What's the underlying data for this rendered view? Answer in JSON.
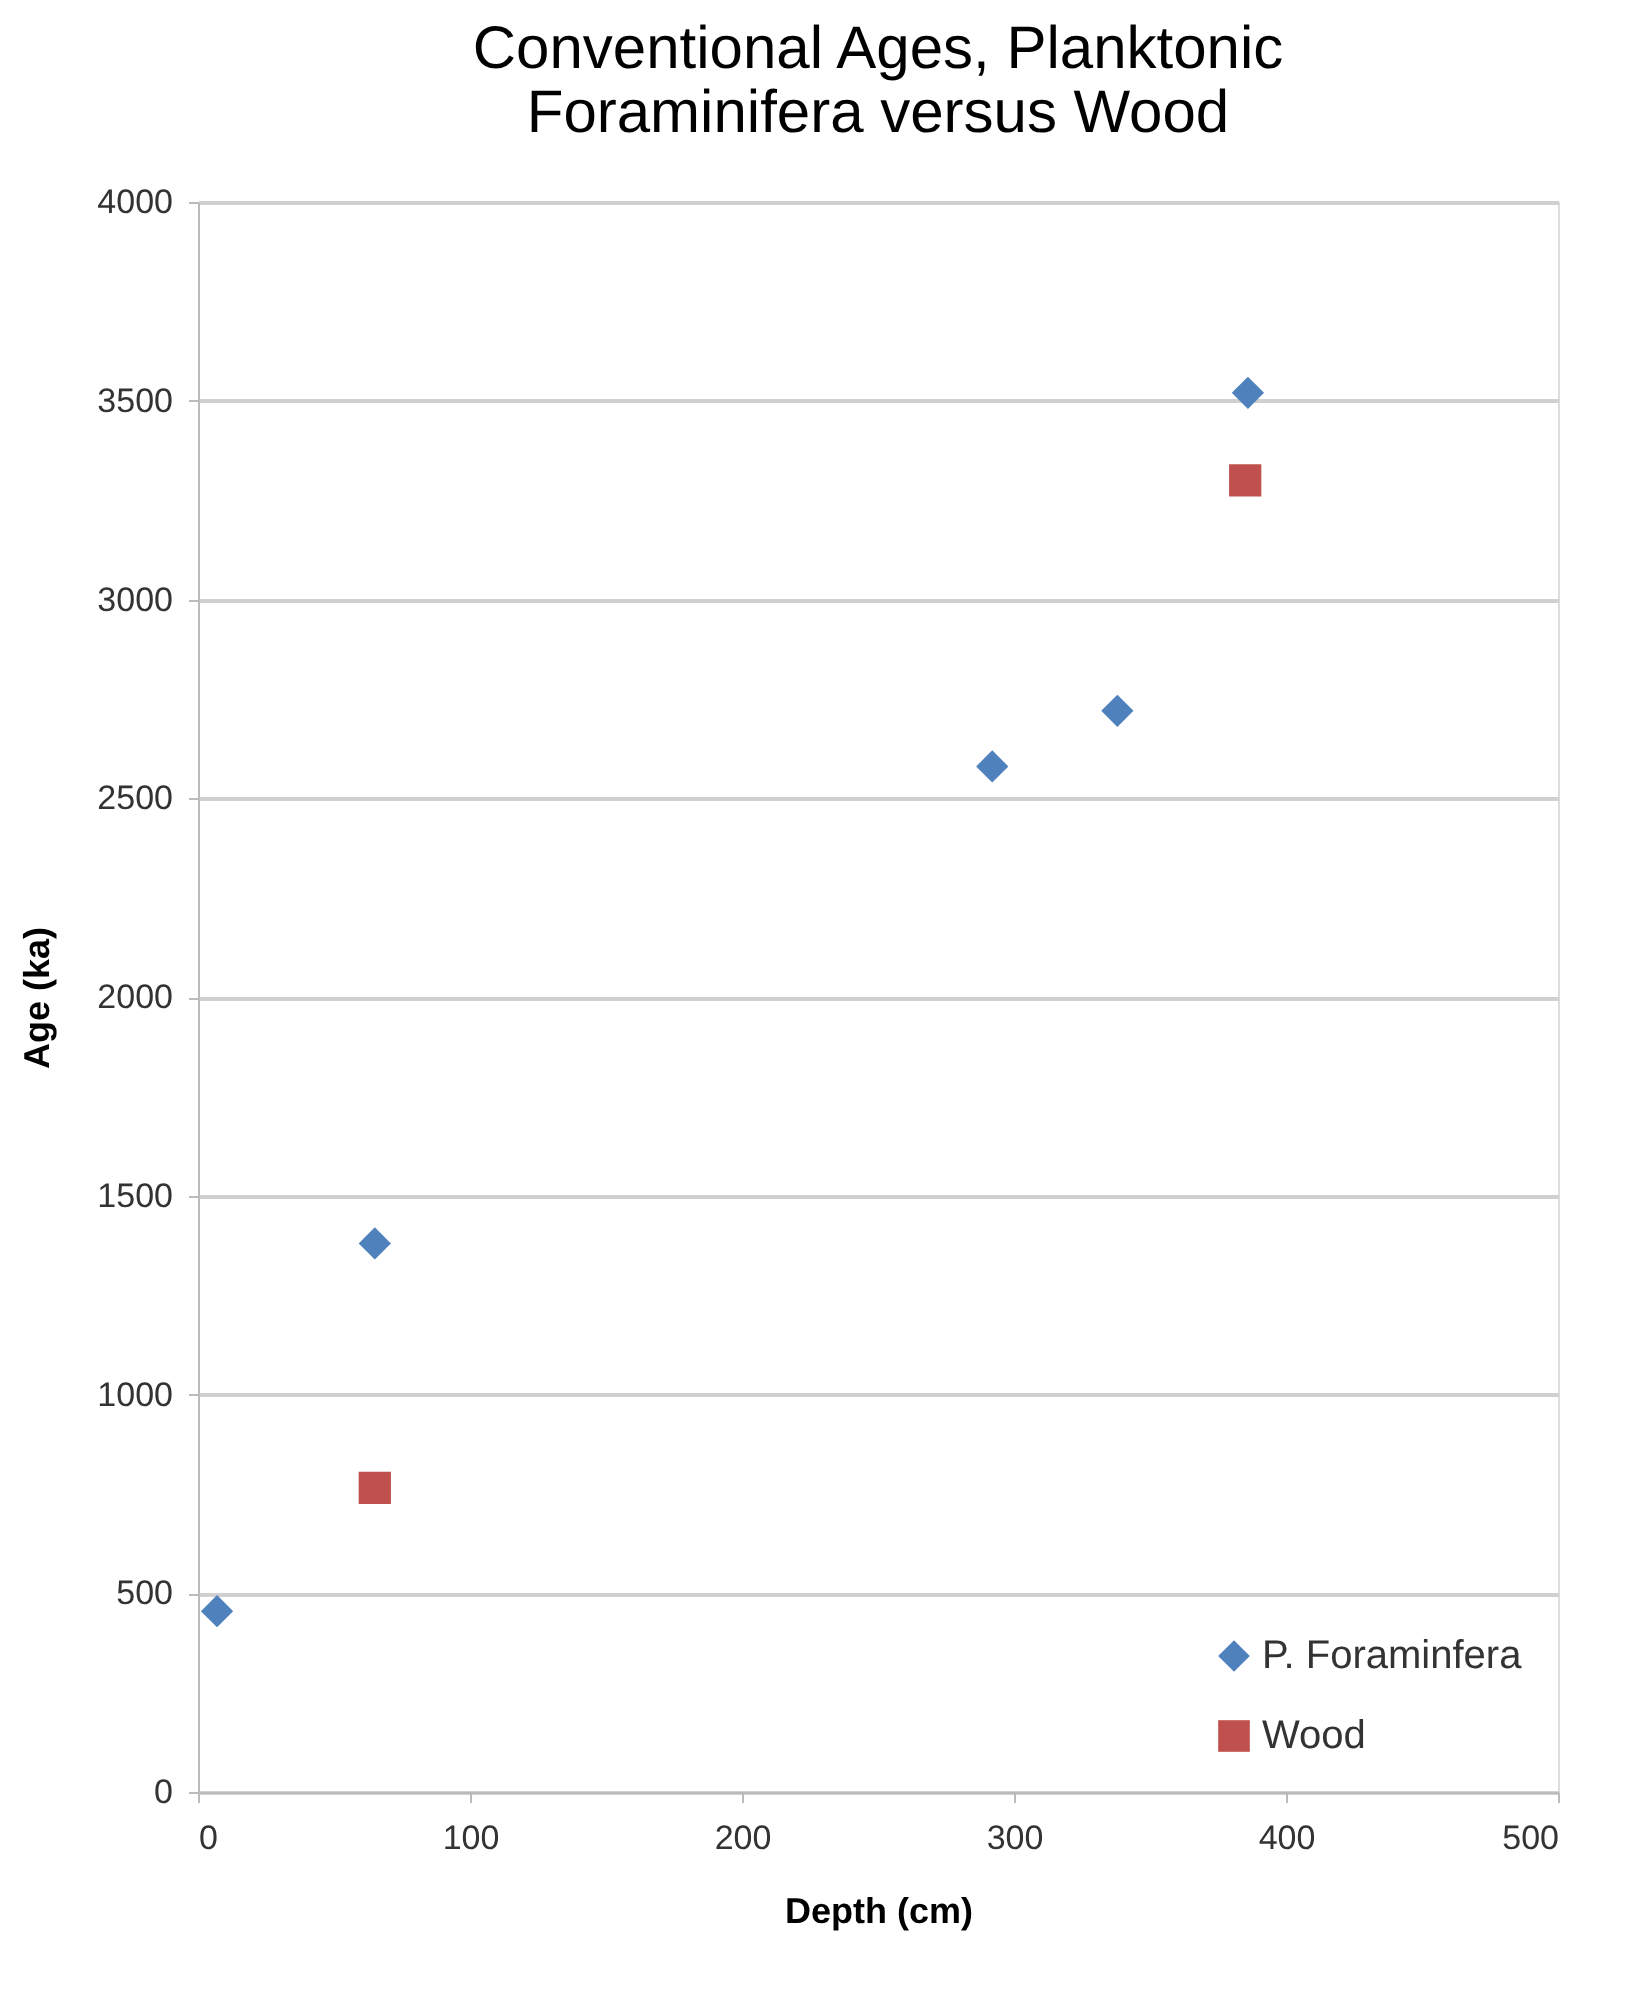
{
  "chart_data": {
    "type": "scatter",
    "title": [
      "Conventional Ages, Planktonic",
      "Foraminifera versus Wood"
    ],
    "xlabel": "Depth (cm)",
    "ylabel": "Age (ka)",
    "series": [
      {
        "name": "P. Foraminfera",
        "color": "#4f81bd",
        "marker": "diamond",
        "x": [
          7,
          65,
          292,
          338,
          386
        ],
        "values": [
          455,
          1380,
          2580,
          2720,
          3520
        ]
      },
      {
        "name": "Wood",
        "color": "#c0504d",
        "marker": "square",
        "x": [
          65,
          385
        ],
        "values": [
          765,
          3300
        ]
      }
    ],
    "xlim": [
      0,
      500
    ],
    "xticks": [
      0,
      100,
      200,
      300,
      400,
      500
    ],
    "ylim": [
      0,
      4000
    ],
    "yticks": [
      0,
      500,
      1000,
      1500,
      2000,
      2500,
      3000,
      3500,
      4000
    ],
    "grid": "y",
    "legend": "bottom right"
  }
}
